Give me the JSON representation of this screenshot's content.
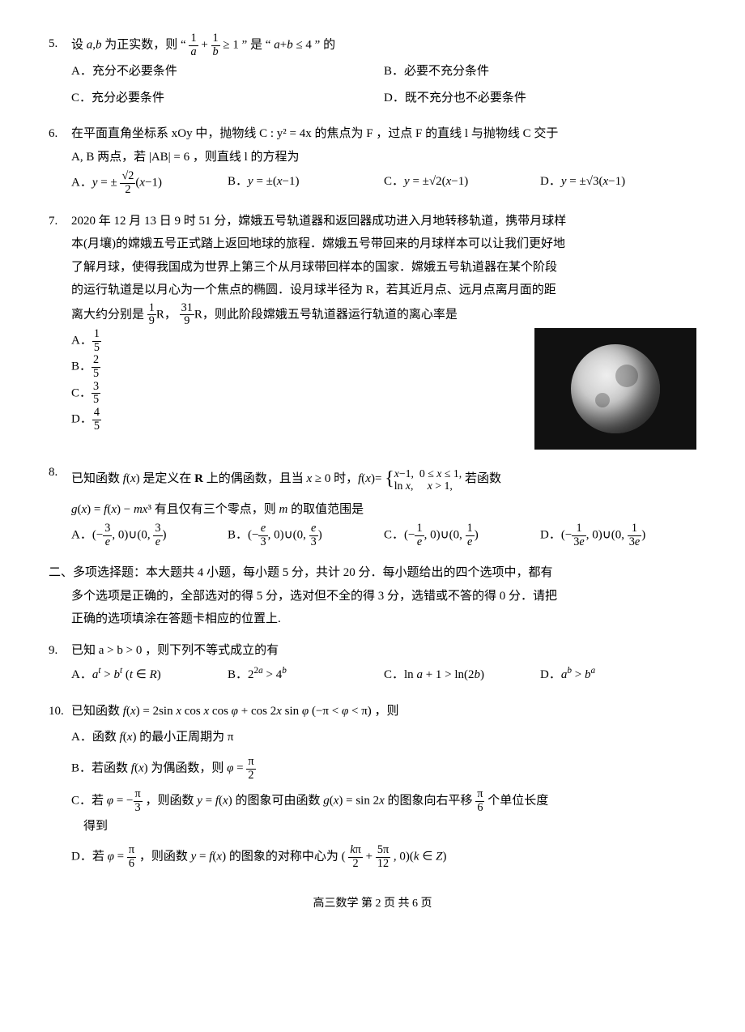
{
  "q5": {
    "num": "5.",
    "text": "设 a,b 为正实数，则 “ 1/a + 1/b ≥ 1 ” 是 “ a+b ≤ 4 ” 的",
    "opts": {
      "A": "A．充分不必要条件",
      "B": "B．必要不充分条件",
      "C": "C．充分必要条件",
      "D": "D．既不充分也不必要条件"
    }
  },
  "q6": {
    "num": "6.",
    "line1": "在平面直角坐标系 xOy 中，抛物线 C : y² = 4x 的焦点为 F ，过点 F 的直线 l 与抛物线 C 交于",
    "line2": "A, B 两点，若 |AB| = 6 ，则直线 l 的方程为",
    "opts": {
      "A": "A．y = ± (√2/2)(x−1)",
      "B": "B．y = ±(x−1)",
      "C": "C．y = ±√2(x−1)",
      "D": "D．y = ±√3(x−1)"
    }
  },
  "q7": {
    "num": "7.",
    "line1": "2020 年 12 月 13 日 9 时 51 分，嫦娥五号轨道器和返回器成功进入月地转移轨道，携带月球样",
    "line2": "本(月壤)的嫦娥五号正式踏上返回地球的旅程．嫦娥五号带回来的月球样本可以让我们更好地",
    "line3": "了解月球，使得我国成为世界上第三个从月球带回样本的国家．嫦娥五号轨道器在某个阶段",
    "line4": "的运行轨道是以月心为一个焦点的椭圆．设月球半径为 R，若其近月点、远月点离月面的距",
    "line5": "离大约分别是 (1/9)R，(31/9)R，则此阶段嫦娥五号轨道器运行轨道的离心率是",
    "opts": {
      "A": "A．1/5",
      "B": "B．2/5",
      "C": "C．3/5",
      "D": "D．4/5"
    }
  },
  "q8": {
    "num": "8.",
    "line1": "已知函数 f(x) 是定义在 R 上的偶函数，且当 x ≥ 0 时，f(x)= { x−1, 0≤x≤1; ln x, x>1，若函数",
    "line2": "g(x) = f(x) − mx³ 有且仅有三个零点，则 m 的取值范围是",
    "opts": {
      "A": "A．(−3/e, 0)∪(0, 3/e)",
      "B": "B．(−e/3, 0)∪(0, e/3)",
      "C": "C．(−1/e, 0)∪(0, 1/e)",
      "D": "D．(−1/3e, 0)∪(0, 1/3e)"
    }
  },
  "section2": {
    "title": "二、多项选择题：本大题共 4 小题，每小题 5 分，共计 20 分．每小题给出的四个选项中，都有",
    "line2": "多个选项是正确的，全部选对的得 5 分，选对但不全的得 3 分，选错或不答的得 0 分．请把",
    "line3": "正确的选项填涂在答题卡相应的位置上."
  },
  "q9": {
    "num": "9.",
    "text": "已知 a > b > 0 ，则下列不等式成立的有",
    "opts": {
      "A": "A．aᵗ > bᵗ (t ∈ R)",
      "B": "B．2²ᵃ > 4ᵇ",
      "C": "C．ln a + 1 > ln(2b)",
      "D": "D．aᵇ > bᵃ"
    }
  },
  "q10": {
    "num": "10.",
    "text": "已知函数 f(x) = 2sin x cos x cos φ + cos 2x sin φ (−π < φ < π) ，则",
    "opts": {
      "A": "A．函数 f(x) 的最小正周期为 π",
      "B": "B．若函数 f(x) 为偶函数，则 φ = π/2",
      "C": "C．若 φ = −π/3 ，则函数 y = f(x) 的图象可由函数 g(x) = sin 2x 的图象向右平移 π/6 个单位长度得到",
      "D": "D．若 φ = π/6 ，则函数 y = f(x) 的图象的对称中心为 ( kπ/2 + 5π/12 , 0 )(k ∈ Z)"
    }
  },
  "footer": "高三数学  第 2 页  共 6 页"
}
